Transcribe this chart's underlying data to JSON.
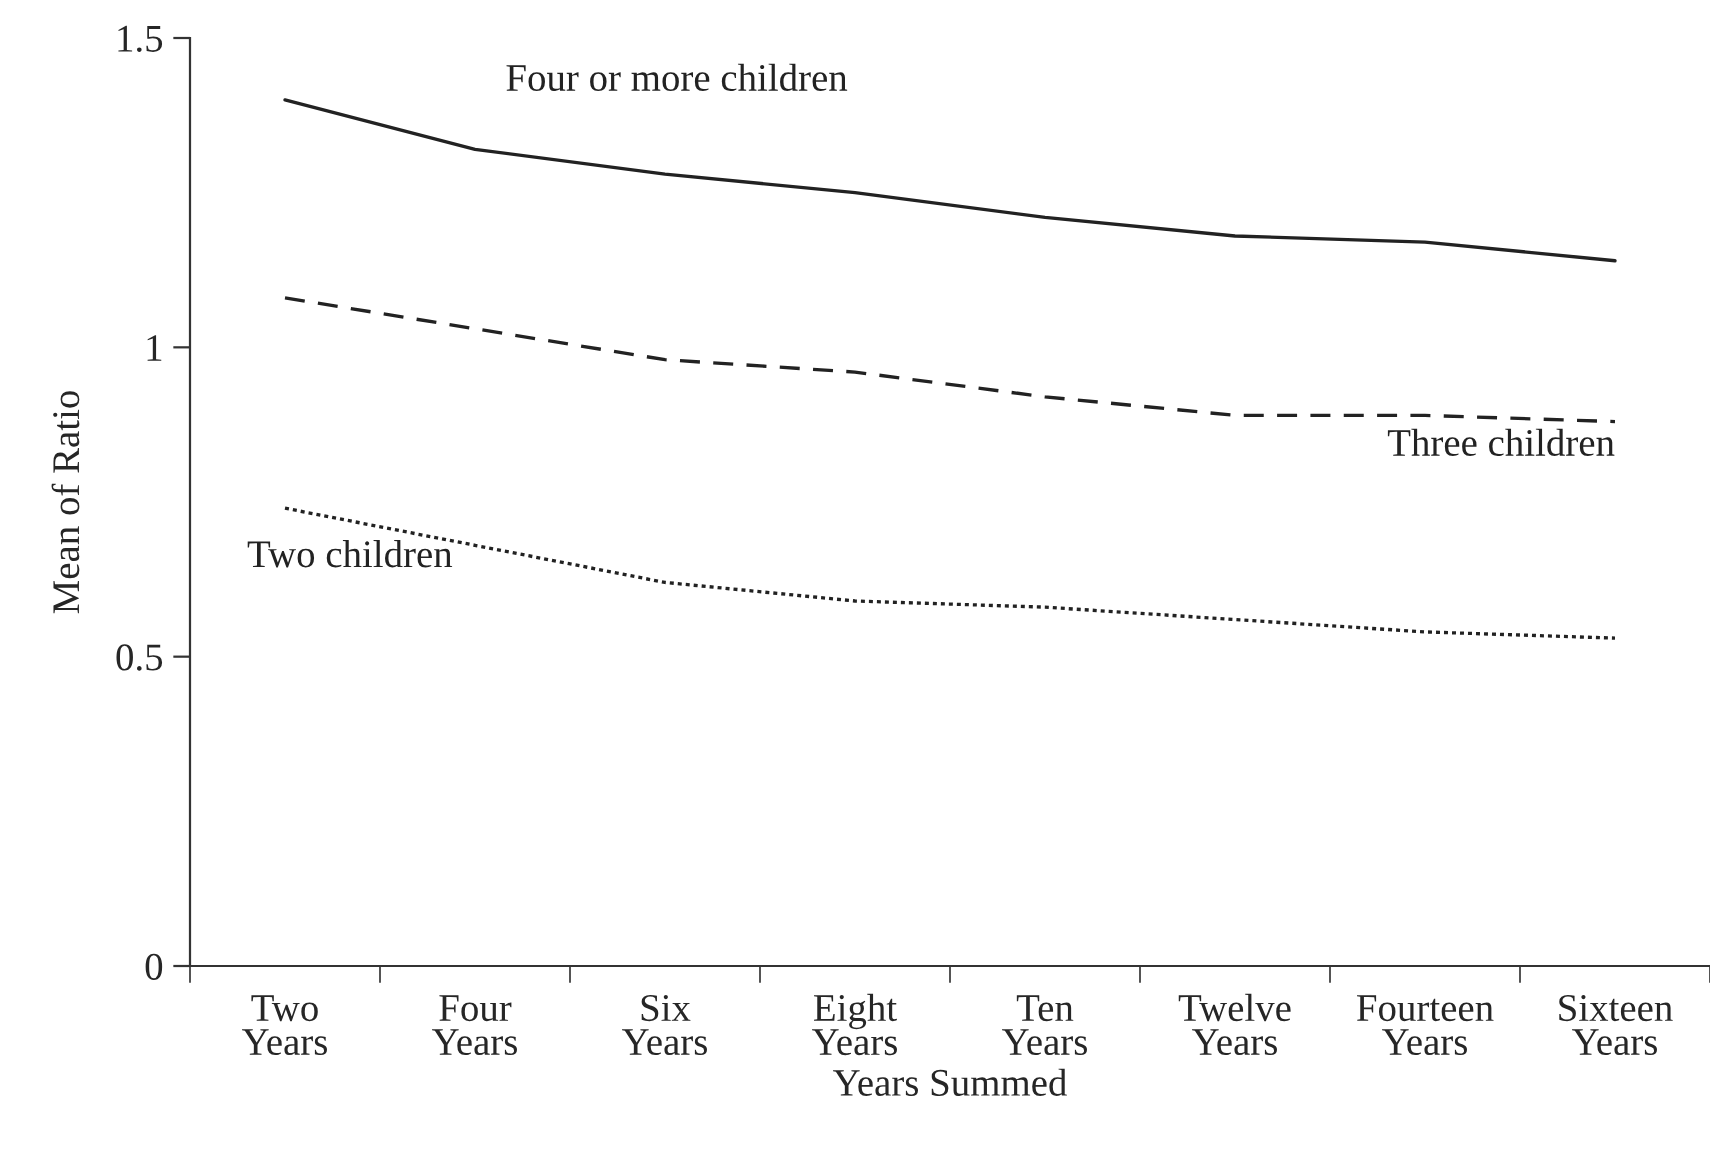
{
  "chart_data": {
    "type": "line",
    "xlabel": "Years Summed",
    "ylabel": "Mean of Ratio",
    "categories": [
      "Two\nYears",
      "Four\nYears",
      "Six\nYears",
      "Eight\nYears",
      "Ten\nYears",
      "Twelve\nYears",
      "Fourteen\nYears",
      "Sixteen\nYears"
    ],
    "series": [
      {
        "name": "Four or more children",
        "color": "#222222",
        "line_style": "solid",
        "values": [
          1.4,
          1.32,
          1.28,
          1.25,
          1.21,
          1.18,
          1.17,
          1.14
        ]
      },
      {
        "name": "Three children",
        "color": "#222222",
        "line_style": "dashed",
        "values": [
          1.08,
          1.03,
          0.98,
          0.96,
          0.92,
          0.89,
          0.89,
          0.88
        ]
      },
      {
        "name": "Two children",
        "color": "#222222",
        "line_style": "dotted",
        "values": [
          0.74,
          0.68,
          0.62,
          0.59,
          0.58,
          0.56,
          0.54,
          0.53
        ]
      }
    ],
    "ylim": [
      0,
      1.5
    ],
    "yticks": [
      0,
      0.5,
      1,
      1.5
    ],
    "grid": false,
    "legend": false,
    "marker": "none"
  }
}
